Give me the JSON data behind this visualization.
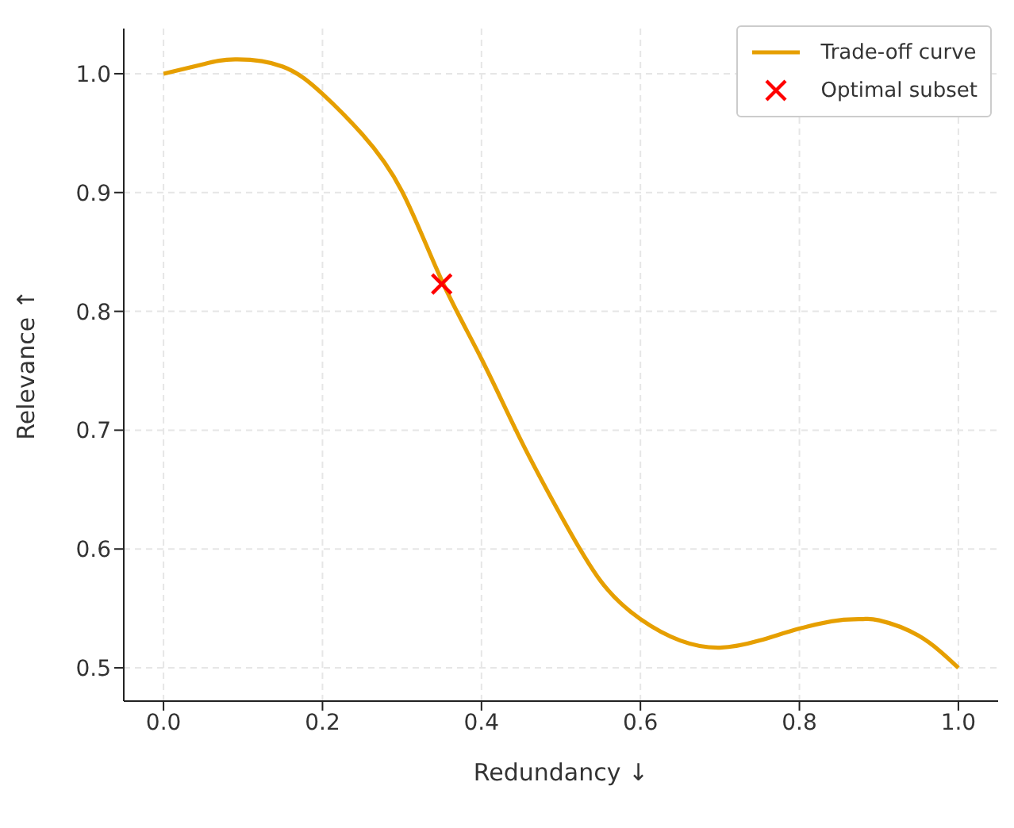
{
  "chart_data": {
    "type": "line",
    "xlabel": "Redundancy ↓",
    "ylabel": "Relevance ↑",
    "series": [
      {
        "name": "Trade-off curve",
        "color": "#e69f00",
        "x": [
          0,
          0.05,
          0.09,
          0.15,
          0.2,
          0.25,
          0.3,
          0.35,
          0.4,
          0.45,
          0.5,
          0.55,
          0.6,
          0.65,
          0.7,
          0.75,
          0.8,
          0.85,
          0.88,
          0.9,
          0.95,
          1.0
        ],
        "values": [
          1.0,
          1.008,
          1.012,
          1.006,
          0.983,
          0.949,
          0.901,
          0.826,
          0.76,
          0.691,
          0.628,
          0.573,
          0.541,
          0.523,
          0.517,
          0.523,
          0.533,
          0.54,
          0.541,
          0.54,
          0.527,
          0.5
        ]
      },
      {
        "name": "Optimal subset",
        "type": "scatter",
        "color": "#ff0000",
        "marker": "cross",
        "x": [
          0.35
        ],
        "values": [
          0.823
        ]
      }
    ],
    "xlim": [
      -0.05,
      1.05
    ],
    "ylim": [
      0.472,
      1.038
    ],
    "xticks": [
      {
        "value": 0,
        "label": "0.0"
      },
      0.2,
      0.4,
      0.6,
      0.8,
      {
        "value": 1,
        "label": "1.0"
      }
    ],
    "yticks": [
      0.5,
      0.6,
      0.7,
      0.8,
      0.9,
      {
        "value": 1,
        "label": "1.0"
      }
    ],
    "grid": true,
    "legend": "top right",
    "line_style": "solid"
  }
}
